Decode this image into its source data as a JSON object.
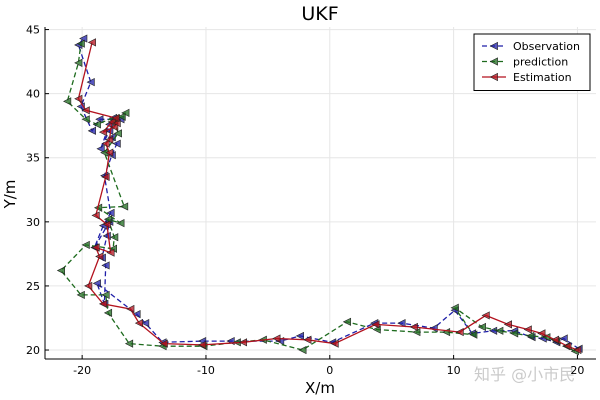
{
  "chart_data": {
    "type": "line",
    "title": "UKF",
    "xlabel": "X/m",
    "ylabel": "Y/m",
    "xlim": [
      -23,
      21.5
    ],
    "ylim": [
      19.3,
      45.2
    ],
    "xticks": [
      -20,
      -10,
      0,
      10,
      20
    ],
    "yticks": [
      20,
      25,
      30,
      35,
      40,
      45
    ],
    "grid": true,
    "legend_position": "top-right",
    "watermark": "知乎 @小市民",
    "series": [
      {
        "name": "Observation",
        "color": "#1f1fa8",
        "line_style": "dashed",
        "marker": "left-triangle",
        "x": [
          20.1,
          18.9,
          18.3,
          17.2,
          16.3,
          14.9,
          13.2,
          11.5,
          10.1,
          8.4,
          5.8,
          3.6,
          0.2,
          -2.4,
          -4.0,
          -8.0,
          -10.3,
          -13.5,
          -14.9,
          -15.6,
          -18.8,
          -18.2,
          -18.1,
          -18.4,
          -18.0,
          -17.8,
          -19.0,
          -18.3,
          -17.7,
          -18.2,
          -17.6,
          -17.2,
          -17.6,
          -17.8,
          -18.5,
          -17.8,
          -17.5,
          -16.9,
          -18.6,
          -19.2,
          -20.1,
          -19.3,
          -20.3,
          -19.9
        ],
        "y": [
          20.1,
          20.9,
          20.6,
          20.9,
          21.0,
          21.5,
          21.5,
          21.3,
          23.1,
          21.7,
          22.1,
          22.1,
          20.6,
          21.1,
          20.7,
          20.7,
          20.7,
          20.6,
          22.1,
          22.8,
          25.2,
          23.6,
          26.6,
          27.2,
          28.9,
          30.0,
          28.0,
          29.7,
          30.7,
          33.6,
          35.2,
          36.1,
          36.6,
          37.1,
          35.7,
          37.6,
          38.1,
          38.0,
          38.0,
          37.1,
          39.0,
          40.9,
          43.8,
          44.3
        ]
      },
      {
        "name": "prediction",
        "color": "#1e6b1e",
        "line_style": "dashed",
        "marker": "left-triangle",
        "x": [
          19.8,
          19.1,
          18.3,
          17.5,
          16.2,
          14.9,
          13.7,
          12.3,
          10.1,
          11.6,
          9.4,
          7.0,
          3.8,
          1.4,
          -2.2,
          -5.4,
          -7.5,
          -10.2,
          -13.5,
          -16.2,
          -17.9,
          -18.1,
          -20.1,
          -21.7,
          -19.7,
          -17.5,
          -17.4,
          -17.9,
          -16.9,
          -18.7,
          -16.6,
          -18.2,
          -17.1,
          -17.4,
          -16.8,
          -16.5,
          -18.8,
          -19.7,
          -21.2,
          -20.3,
          -20.1
        ],
        "y": [
          19.9,
          20.3,
          20.7,
          21.0,
          21.1,
          21.3,
          21.5,
          21.8,
          23.3,
          21.2,
          21.4,
          21.4,
          21.6,
          22.2,
          20.0,
          20.8,
          20.6,
          20.3,
          20.3,
          20.5,
          22.9,
          24.3,
          24.3,
          26.2,
          28.2,
          27.9,
          28.8,
          30.2,
          29.9,
          31.1,
          31.2,
          35.4,
          36.9,
          37.9,
          38.2,
          38.5,
          37.6,
          38.0,
          39.4,
          42.4,
          43.9
        ]
      },
      {
        "name": "Estimation",
        "color": "#b3121e",
        "line_style": "solid",
        "marker": "left-triangle",
        "x": [
          20.0,
          19.2,
          18.2,
          17.1,
          16.0,
          14.4,
          12.6,
          10.5,
          6.8,
          3.7,
          0.4,
          -1.8,
          -4.3,
          -7.0,
          -10.3,
          -13.4,
          -15.4,
          -16.1,
          -18.3,
          -19.5,
          -18.6,
          -18.9,
          -17.7,
          -18.0,
          -18.9,
          -18.1,
          -17.8,
          -18.1,
          -17.8,
          -17.6,
          -18.3,
          -17.4,
          -17.2,
          -17.3,
          -19.7,
          -20.3,
          -19.2
        ],
        "y": [
          20.0,
          20.3,
          20.8,
          21.3,
          21.6,
          22.0,
          22.7,
          21.4,
          21.8,
          22.0,
          20.5,
          20.8,
          20.9,
          20.6,
          20.4,
          20.5,
          22.1,
          23.2,
          23.6,
          25.0,
          27.3,
          28.0,
          27.6,
          29.8,
          30.5,
          33.5,
          35.4,
          36.1,
          36.4,
          37.8,
          37.0,
          37.4,
          37.7,
          38.1,
          38.7,
          39.6,
          44.0
        ]
      }
    ]
  }
}
